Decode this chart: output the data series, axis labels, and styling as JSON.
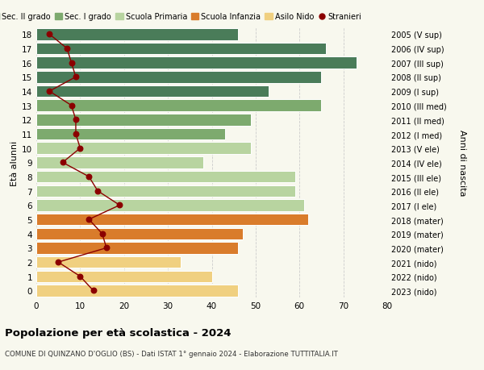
{
  "ages": [
    18,
    17,
    16,
    15,
    14,
    13,
    12,
    11,
    10,
    9,
    8,
    7,
    6,
    5,
    4,
    3,
    2,
    1,
    0
  ],
  "years": [
    "2005 (V sup)",
    "2006 (IV sup)",
    "2007 (III sup)",
    "2008 (II sup)",
    "2009 (I sup)",
    "2010 (III med)",
    "2011 (II med)",
    "2012 (I med)",
    "2013 (V ele)",
    "2014 (IV ele)",
    "2015 (III ele)",
    "2016 (II ele)",
    "2017 (I ele)",
    "2018 (mater)",
    "2019 (mater)",
    "2020 (mater)",
    "2021 (nido)",
    "2022 (nido)",
    "2023 (nido)"
  ],
  "bar_values": [
    46,
    66,
    73,
    65,
    53,
    65,
    49,
    43,
    49,
    38,
    59,
    59,
    61,
    62,
    47,
    46,
    33,
    40,
    46
  ],
  "bar_colors": [
    "#4a7c59",
    "#4a7c59",
    "#4a7c59",
    "#4a7c59",
    "#4a7c59",
    "#7daa6e",
    "#7daa6e",
    "#7daa6e",
    "#b8d4a0",
    "#b8d4a0",
    "#b8d4a0",
    "#b8d4a0",
    "#b8d4a0",
    "#d97c2b",
    "#d97c2b",
    "#d97c2b",
    "#f0d080",
    "#f0d080",
    "#f0d080"
  ],
  "stranieri_values": [
    3,
    7,
    8,
    9,
    3,
    8,
    9,
    9,
    10,
    6,
    12,
    14,
    19,
    12,
    15,
    16,
    5,
    10,
    13
  ],
  "stranieri_color": "#8b0000",
  "legend_labels": [
    "Sec. II grado",
    "Sec. I grado",
    "Scuola Primaria",
    "Scuola Infanzia",
    "Asilo Nido",
    "Stranieri"
  ],
  "legend_colors": [
    "#4a7c59",
    "#7daa6e",
    "#b8d4a0",
    "#d97c2b",
    "#f0d080",
    "#8b0000"
  ],
  "left_ylabel": "Età alunni",
  "right_ylabel": "Anni di nascita",
  "title": "Popolazione per età scolastica - 2024",
  "subtitle": "COMUNE DI QUINZANO D'OGLIO (BS) - Dati ISTAT 1° gennaio 2024 - Elaborazione TUTTITALIA.IT",
  "xlim": [
    0,
    80
  ],
  "xticks": [
    0,
    10,
    20,
    30,
    40,
    50,
    60,
    70,
    80
  ],
  "background_color": "#f8f8ee",
  "grid_color": "#cccccc"
}
